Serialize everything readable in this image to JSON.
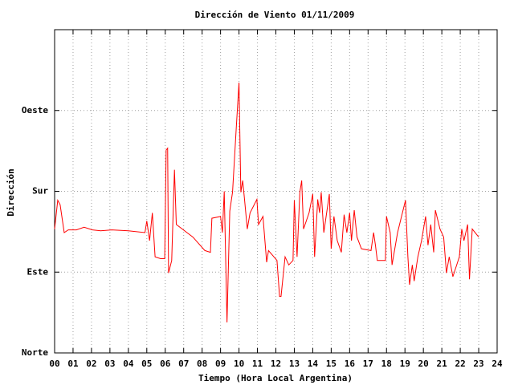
{
  "chart_data": {
    "type": "line",
    "title": "Dirección de Viento 01/11/2009",
    "x_label": "Tiempo (Hora Local Argentina)",
    "y_label": "Dirección",
    "xlim": [
      0,
      24
    ],
    "ylim": [
      0,
      360
    ],
    "xticks": [
      {
        "value": 0,
        "label": "00"
      },
      {
        "value": 1,
        "label": "01"
      },
      {
        "value": 2,
        "label": "02"
      },
      {
        "value": 3,
        "label": "03"
      },
      {
        "value": 4,
        "label": "04"
      },
      {
        "value": 5,
        "label": "05"
      },
      {
        "value": 6,
        "label": "06"
      },
      {
        "value": 7,
        "label": "07"
      },
      {
        "value": 8,
        "label": "08"
      },
      {
        "value": 9,
        "label": "09"
      },
      10,
      11,
      12,
      13,
      14,
      15,
      16,
      17,
      18,
      19,
      20,
      21,
      22,
      23,
      24
    ],
    "yticks": [
      {
        "value": 0,
        "label": "Norte"
      },
      {
        "value": 90,
        "label": "Este"
      },
      {
        "value": 180,
        "label": "Sur"
      },
      {
        "value": 270,
        "label": "Oeste"
      }
    ],
    "grid": true,
    "series": [
      {
        "color": "#ff0000",
        "x": [
          0,
          0.17,
          0.3,
          0.52,
          0.74,
          1.18,
          1.6,
          2.05,
          2.5,
          3.1,
          4.0,
          4.9,
          5.0,
          5.15,
          5.3,
          5.45,
          5.75,
          5.97,
          6.05,
          6.13,
          6.18,
          6.35,
          6.5,
          6.6,
          7.5,
          8.15,
          8.45,
          8.53,
          9.0,
          9.1,
          9.2,
          9.35,
          9.5,
          9.65,
          9.85,
          10.0,
          10.1,
          10.2,
          10.3,
          10.45,
          10.6,
          10.97,
          11.06,
          11.3,
          11.5,
          11.6,
          12.06,
          12.2,
          12.28,
          12.5,
          12.7,
          12.93,
          13.0,
          13.15,
          13.3,
          13.4,
          13.5,
          13.8,
          14.0,
          14.1,
          14.27,
          14.37,
          14.46,
          14.6,
          14.9,
          15.0,
          15.15,
          15.33,
          15.55,
          15.7,
          15.85,
          16.0,
          16.1,
          16.25,
          16.4,
          16.64,
          17.16,
          17.3,
          17.4,
          17.5,
          17.94,
          18.0,
          18.2,
          18.3,
          18.6,
          19.03,
          19.16,
          19.25,
          19.4,
          19.5,
          19.7,
          19.9,
          20.12,
          20.25,
          20.4,
          20.56,
          20.65,
          20.9,
          21.1,
          21.25,
          21.4,
          21.6,
          21.95,
          22.08,
          22.2,
          22.4,
          22.5,
          22.65,
          23.0
        ],
        "values": [
          138,
          170,
          165,
          134,
          137,
          137,
          140,
          137,
          136,
          137,
          136,
          134,
          147,
          125,
          156,
          107,
          105,
          105,
          226,
          228,
          89,
          103,
          204,
          143,
          129,
          114,
          112,
          150,
          152,
          134,
          180,
          34,
          158,
          179,
          250,
          301,
          179,
          192,
          171,
          138,
          156,
          171,
          143,
          152,
          101,
          114,
          103,
          63,
          63,
          107,
          98,
          103,
          170,
          107,
          179,
          192,
          138,
          156,
          177,
          107,
          171,
          156,
          179,
          134,
          177,
          116,
          152,
          125,
          112,
          154,
          134,
          156,
          125,
          159,
          129,
          116,
          114,
          134,
          120,
          103,
          103,
          152,
          134,
          98,
          134,
          170,
          107,
          76,
          98,
          80,
          107,
          125,
          152,
          120,
          143,
          112,
          159,
          138,
          129,
          89,
          107,
          85,
          107,
          138,
          125,
          143,
          82,
          138,
          129
        ]
      }
    ]
  }
}
